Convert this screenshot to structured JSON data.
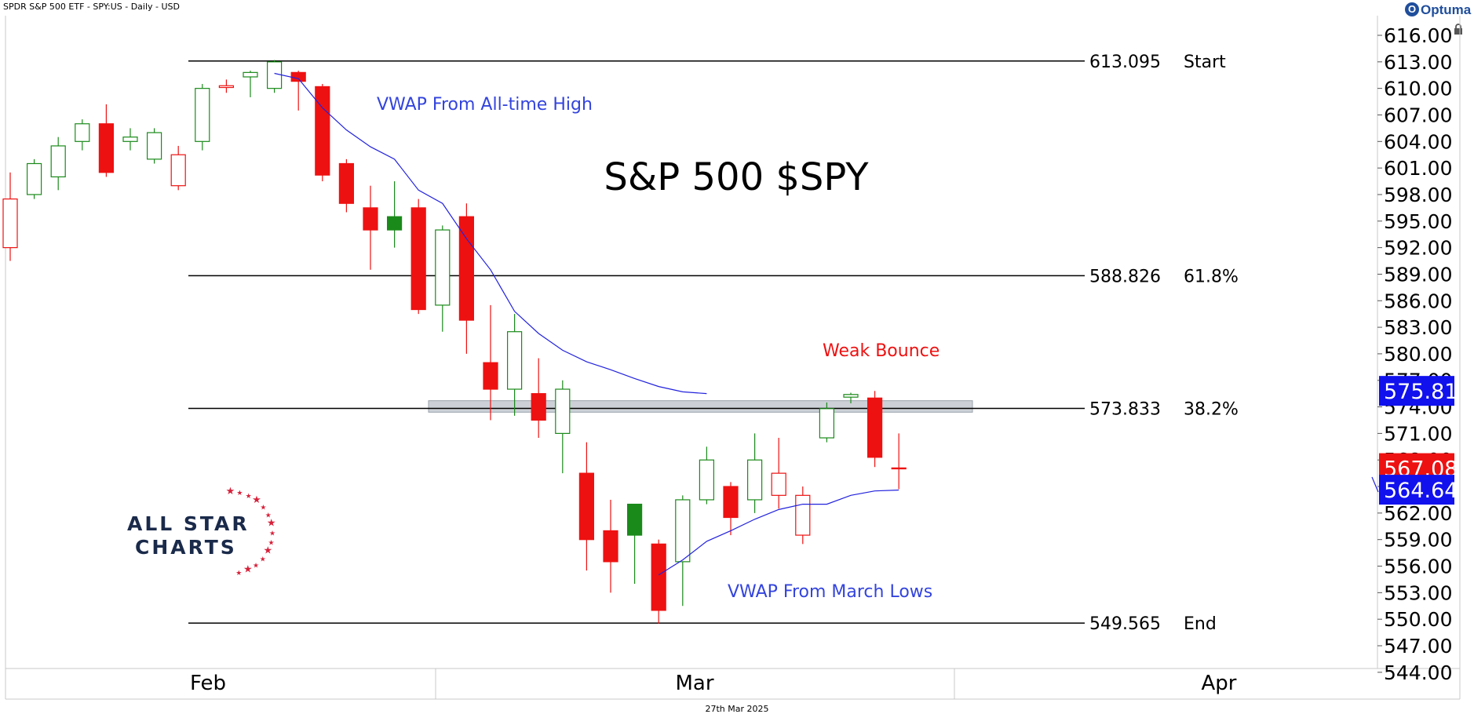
{
  "header": {
    "title": "SPDR S&P 500 ETF - SPY:US - Daily - USD",
    "brand": "Optuma"
  },
  "footer": {
    "date": "27th Mar 2025"
  },
  "logo": {
    "line1": "ALL STAR",
    "line2": "CHARTS"
  },
  "colors": {
    "up": "#1a8a1a",
    "down": "#ee1111",
    "vwap": "#2222dd",
    "fib_line": "#000000",
    "zone": "#b8bec6",
    "label_blue": "#1111ee",
    "label_red": "#ee1111"
  },
  "chart_data": {
    "type": "candlestick",
    "title": "S&P 500 $SPY",
    "x_labels": [
      "Feb",
      "Mar",
      "Apr"
    ],
    "y_ticks": [
      "616.00",
      "613.00",
      "610.00",
      "607.00",
      "604.00",
      "601.00",
      "598.00",
      "595.00",
      "592.00",
      "589.00",
      "586.00",
      "583.00",
      "580.00",
      "577.00",
      "574.00",
      "571.00",
      "568.00",
      "565.00",
      "562.00",
      "559.00",
      "556.00",
      "553.00",
      "550.00",
      "547.00",
      "544.00"
    ],
    "ylim": [
      544,
      617
    ],
    "price_labels": [
      {
        "text": "575.81",
        "value": 575.81,
        "color": "#1111ee"
      },
      {
        "text": "567.08",
        "value": 567.08,
        "color": "#ee1111"
      },
      {
        "text": "564.64",
        "value": 564.64,
        "color": "#1111ee"
      }
    ],
    "fib_levels": [
      {
        "value": "613.095",
        "label": "Start",
        "y": 613.095
      },
      {
        "value": "588.826",
        "label": "61.8%",
        "y": 588.826
      },
      {
        "value": "573.833",
        "label": "38.2%",
        "y": 573.833
      },
      {
        "value": "549.565",
        "label": "End",
        "y": 549.565
      }
    ],
    "resistance_zone": [
      573.4,
      574.7
    ],
    "annotations": [
      {
        "text": "VWAP From All-time High",
        "color": "#3344dd"
      },
      {
        "text": "Weak Bounce",
        "color": "#ee1111"
      },
      {
        "text": "VWAP From March Lows",
        "color": "#3344dd"
      }
    ],
    "candles": [
      {
        "o": 597.5,
        "h": 600.5,
        "l": 590.5,
        "c": 592.0,
        "filled": false,
        "dir": "down"
      },
      {
        "o": 598.0,
        "h": 602.0,
        "l": 597.5,
        "c": 601.5,
        "filled": false,
        "dir": "up"
      },
      {
        "o": 600.0,
        "h": 604.5,
        "l": 598.5,
        "c": 603.5,
        "filled": false,
        "dir": "up"
      },
      {
        "o": 604.0,
        "h": 606.5,
        "l": 603.0,
        "c": 606.0,
        "filled": false,
        "dir": "up"
      },
      {
        "o": 606.0,
        "h": 608.2,
        "l": 600.0,
        "c": 600.5,
        "filled": true,
        "dir": "down"
      },
      {
        "o": 604.0,
        "h": 605.5,
        "l": 603.0,
        "c": 604.5,
        "filled": false,
        "dir": "up"
      },
      {
        "o": 602.0,
        "h": 605.5,
        "l": 601.5,
        "c": 605.0,
        "filled": false,
        "dir": "up"
      },
      {
        "o": 602.5,
        "h": 603.5,
        "l": 598.5,
        "c": 599.0,
        "filled": false,
        "dir": "down"
      },
      {
        "o": 604.0,
        "h": 610.5,
        "l": 603.0,
        "c": 610.0,
        "filled": false,
        "dir": "up"
      },
      {
        "o": 610.3,
        "h": 611.0,
        "l": 609.5,
        "c": 610.1,
        "filled": false,
        "dir": "down"
      },
      {
        "o": 611.3,
        "h": 612.0,
        "l": 609.0,
        "c": 611.8,
        "filled": false,
        "dir": "up"
      },
      {
        "o": 610.0,
        "h": 613.2,
        "l": 609.5,
        "c": 613.0,
        "filled": false,
        "dir": "up"
      },
      {
        "o": 611.8,
        "h": 612.0,
        "l": 607.5,
        "c": 610.8,
        "filled": true,
        "dir": "down"
      },
      {
        "o": 610.2,
        "h": 610.5,
        "l": 599.5,
        "c": 600.2,
        "filled": true,
        "dir": "down"
      },
      {
        "o": 601.5,
        "h": 602.0,
        "l": 596.0,
        "c": 597.0,
        "filled": true,
        "dir": "down"
      },
      {
        "o": 596.5,
        "h": 599.0,
        "l": 589.5,
        "c": 594.0,
        "filled": true,
        "dir": "down"
      },
      {
        "o": 594.0,
        "h": 599.5,
        "l": 592.0,
        "c": 595.5,
        "filled": true,
        "dir": "up"
      },
      {
        "o": 596.5,
        "h": 597.5,
        "l": 584.5,
        "c": 585.0,
        "filled": true,
        "dir": "down"
      },
      {
        "o": 585.5,
        "h": 594.5,
        "l": 582.5,
        "c": 594.0,
        "filled": false,
        "dir": "up"
      },
      {
        "o": 595.5,
        "h": 597.0,
        "l": 580.0,
        "c": 583.8,
        "filled": true,
        "dir": "down"
      },
      {
        "o": 579.0,
        "h": 585.5,
        "l": 572.5,
        "c": 576.0,
        "filled": true,
        "dir": "down"
      },
      {
        "o": 576.0,
        "h": 584.5,
        "l": 573.0,
        "c": 582.5,
        "filled": false,
        "dir": "up"
      },
      {
        "o": 575.5,
        "h": 579.5,
        "l": 570.5,
        "c": 572.5,
        "filled": true,
        "dir": "down"
      },
      {
        "o": 571.0,
        "h": 577.0,
        "l": 566.5,
        "c": 576.0,
        "filled": false,
        "dir": "up"
      },
      {
        "o": 566.5,
        "h": 570.0,
        "l": 555.5,
        "c": 559.0,
        "filled": true,
        "dir": "down"
      },
      {
        "o": 560.0,
        "h": 563.5,
        "l": 553.0,
        "c": 556.5,
        "filled": true,
        "dir": "down"
      },
      {
        "o": 559.5,
        "h": 563.0,
        "l": 554.0,
        "c": 563.0,
        "filled": true,
        "dir": "up"
      },
      {
        "o": 558.5,
        "h": 559.0,
        "l": 549.5,
        "c": 551.0,
        "filled": true,
        "dir": "down"
      },
      {
        "o": 556.5,
        "h": 564.0,
        "l": 551.5,
        "c": 563.5,
        "filled": false,
        "dir": "up"
      },
      {
        "o": 563.5,
        "h": 569.5,
        "l": 563.0,
        "c": 568.0,
        "filled": false,
        "dir": "up"
      },
      {
        "o": 565.0,
        "h": 565.5,
        "l": 559.5,
        "c": 561.5,
        "filled": true,
        "dir": "down"
      },
      {
        "o": 563.5,
        "h": 571.0,
        "l": 562.0,
        "c": 568.0,
        "filled": false,
        "dir": "up"
      },
      {
        "o": 566.5,
        "h": 570.5,
        "l": 562.5,
        "c": 564.0,
        "filled": false,
        "dir": "down"
      },
      {
        "o": 564.0,
        "h": 565.0,
        "l": 558.5,
        "c": 559.5,
        "filled": false,
        "dir": "down"
      },
      {
        "o": 570.5,
        "h": 574.5,
        "l": 570.0,
        "c": 573.8,
        "filled": false,
        "dir": "up"
      },
      {
        "o": 575.1,
        "h": 575.6,
        "l": 574.4,
        "c": 575.4,
        "filled": false,
        "dir": "up"
      },
      {
        "o": 575.0,
        "h": 575.8,
        "l": 567.2,
        "c": 568.3,
        "filled": true,
        "dir": "down"
      },
      {
        "o": 567.1,
        "h": 571.0,
        "l": 564.7,
        "c": 567.0,
        "filled": false,
        "dir": "down"
      }
    ],
    "vwap_high": [
      611.7,
      611.1,
      607.8,
      605.3,
      603.4,
      602.0,
      598.5,
      597.0,
      593.0,
      589.5,
      584.8,
      582.3,
      580.4,
      579.1,
      578.2,
      577.2,
      576.3,
      575.7,
      575.5
    ],
    "vwap_march": [
      555.0,
      556.7,
      558.8,
      560.0,
      561.3,
      562.4,
      563.0,
      563.0,
      564.0,
      564.5,
      564.6
    ]
  }
}
